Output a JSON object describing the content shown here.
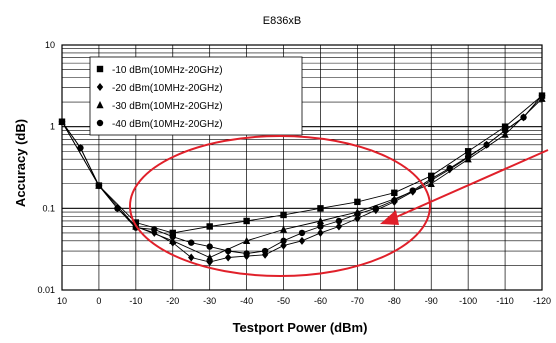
{
  "chart_data": {
    "type": "line",
    "title": "E836xB",
    "xlabel": "Testport Power (dBm)",
    "ylabel": "Accuracy (dB)",
    "x_ticks": [
      "10",
      "0",
      "-10",
      "-20",
      "-30",
      "-40",
      "-50",
      "-60",
      "-70",
      "-80",
      "-90",
      "-100",
      "-110",
      "-120"
    ],
    "y_ticks": [
      "10",
      "1",
      "0.1",
      "0.01"
    ],
    "x_range": [
      10,
      -120
    ],
    "y_range": [
      0.01,
      10
    ],
    "y_scale": "log",
    "grid": true,
    "legend_position": "top-left",
    "series": [
      {
        "name": "-10 dBm(10MHz-20GHz)",
        "marker": "square",
        "x": [
          10,
          0,
          -10,
          -20,
          -30,
          -40,
          -50,
          -60,
          -70,
          -80,
          -90,
          -100,
          -110,
          -120
        ],
        "y": [
          1.15,
          0.19,
          0.067,
          0.05,
          0.06,
          0.07,
          0.083,
          0.1,
          0.12,
          0.155,
          0.25,
          0.5,
          1.0,
          2.4
        ]
      },
      {
        "name": "-20 dBm(10MHz-20GHz)",
        "marker": "diamond",
        "x": [
          10,
          5,
          0,
          -5,
          -10,
          -15,
          -20,
          -25,
          -30,
          -35,
          -40,
          -45,
          -50,
          -55,
          -60,
          -65,
          -70,
          -75,
          -80,
          -85,
          -90,
          -95,
          -100,
          -105,
          -110,
          -115,
          -120
        ],
        "y": [
          1.15,
          0.55,
          0.19,
          0.1,
          0.06,
          0.05,
          0.038,
          0.025,
          0.022,
          0.025,
          0.026,
          0.027,
          0.035,
          0.04,
          0.05,
          0.06,
          0.075,
          0.095,
          0.12,
          0.16,
          0.22,
          0.3,
          0.42,
          0.6,
          0.9,
          1.3,
          2.4
        ]
      },
      {
        "name": "-30 dBm(10MHz-20GHz)",
        "marker": "triangle",
        "x": [
          10,
          0,
          -10,
          -20,
          -30,
          -40,
          -50,
          -60,
          -70,
          -80,
          -90,
          -100,
          -110,
          -120
        ],
        "y": [
          1.15,
          0.19,
          0.06,
          0.04,
          0.025,
          0.04,
          0.055,
          0.07,
          0.09,
          0.13,
          0.2,
          0.4,
          0.8,
          2.2
        ]
      },
      {
        "name": "-40 dBm(10MHz-20GHz)",
        "marker": "circle",
        "x": [
          10,
          5,
          0,
          -5,
          -10,
          -15,
          -20,
          -25,
          -30,
          -35,
          -40,
          -45,
          -50,
          -55,
          -60,
          -65,
          -70,
          -75,
          -80,
          -85,
          -90,
          -95,
          -100,
          -105,
          -110,
          -115,
          -120
        ],
        "y": [
          1.15,
          0.55,
          0.19,
          0.1,
          0.058,
          0.055,
          0.045,
          0.038,
          0.034,
          0.03,
          0.028,
          0.03,
          0.04,
          0.05,
          0.06,
          0.07,
          0.085,
          0.1,
          0.125,
          0.165,
          0.23,
          0.31,
          0.43,
          0.6,
          0.9,
          1.3,
          2.4
        ]
      }
    ],
    "annotation": {
      "shape": "ellipse",
      "color": "#e0202a",
      "arrow": true
    }
  }
}
